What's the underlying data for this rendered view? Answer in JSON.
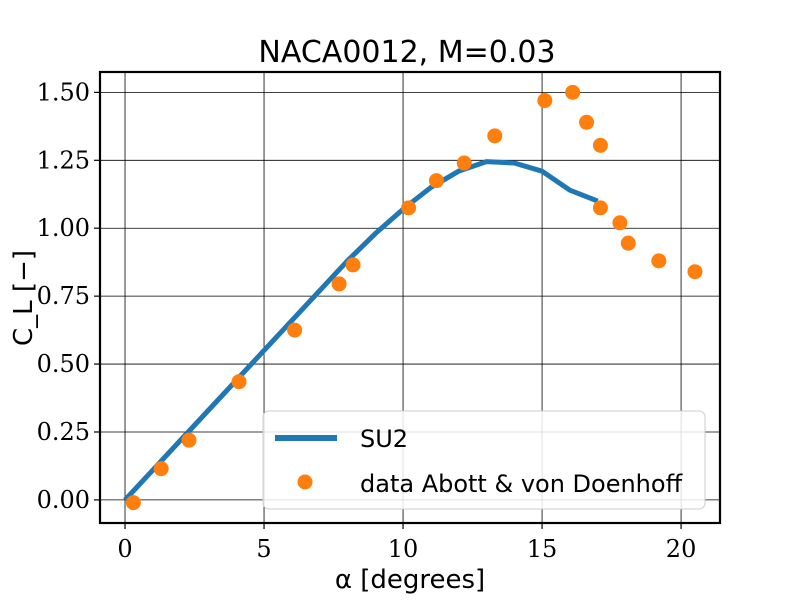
{
  "chart_data": {
    "type": "line",
    "title": "NACA0012, M=0.03",
    "xlabel": "α [degrees]",
    "ylabel": "C_L [−]",
    "xlim": [
      -0.9,
      21.4
    ],
    "ylim": [
      -0.085,
      1.575
    ],
    "x_ticks": [
      0,
      5,
      10,
      15,
      20
    ],
    "x_tick_labels": [
      "0",
      "5",
      "10",
      "15",
      "20"
    ],
    "y_ticks": [
      0.0,
      0.25,
      0.5,
      0.75,
      1.0,
      1.25,
      1.5
    ],
    "y_tick_labels": [
      "0.00",
      "0.25",
      "0.50",
      "0.75",
      "1.00",
      "1.25",
      "1.50"
    ],
    "grid": true,
    "legend": "bottom-right",
    "series": [
      {
        "name": "SU2",
        "kind": "line",
        "color": "#1f77b4",
        "x": [
          0,
          1,
          2,
          3,
          4,
          5,
          6,
          7,
          8,
          9,
          10,
          11,
          12,
          13,
          14,
          15,
          16,
          17
        ],
        "y": [
          0.0,
          0.11,
          0.22,
          0.33,
          0.44,
          0.55,
          0.66,
          0.77,
          0.88,
          0.98,
          1.07,
          1.15,
          1.21,
          1.245,
          1.24,
          1.21,
          1.14,
          1.1
        ]
      },
      {
        "name": "data Abott & von Doenhoff",
        "kind": "scatter",
        "color": "#ff7f0e",
        "x": [
          0.3,
          1.3,
          2.3,
          4.1,
          6.1,
          7.7,
          8.2,
          10.2,
          11.2,
          12.2,
          13.3,
          15.1,
          16.1,
          16.6,
          17.1,
          17.1,
          17.8,
          18.1,
          19.2,
          20.5
        ],
        "y": [
          -0.01,
          0.115,
          0.22,
          0.435,
          0.625,
          0.795,
          0.865,
          1.075,
          1.175,
          1.24,
          1.34,
          1.47,
          1.5,
          1.39,
          1.305,
          1.075,
          1.02,
          0.945,
          0.88,
          0.84
        ]
      }
    ]
  }
}
